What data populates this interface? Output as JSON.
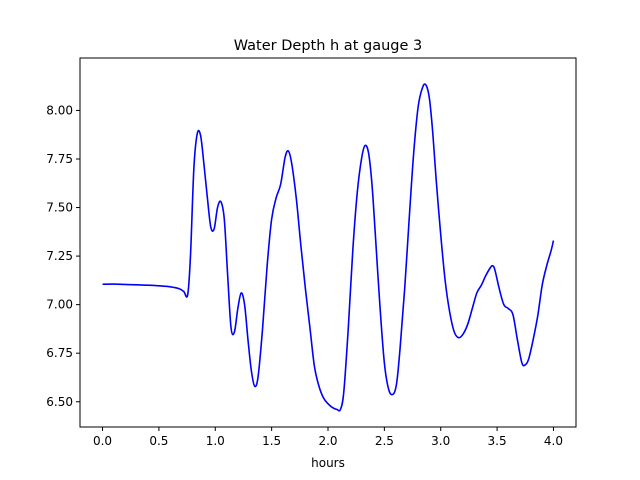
{
  "chart_data": {
    "type": "line",
    "title": "Water Depth h at gauge 3",
    "xlabel": "hours",
    "ylabel": "",
    "xlim": [
      -0.2,
      4.2
    ],
    "ylim": [
      6.37,
      8.27
    ],
    "xticks": [
      0.0,
      0.5,
      1.0,
      1.5,
      2.0,
      2.5,
      3.0,
      3.5,
      4.0
    ],
    "xtick_labels": [
      "0.0",
      "0.5",
      "1.0",
      "1.5",
      "2.0",
      "2.5",
      "3.0",
      "3.5",
      "4.0"
    ],
    "yticks": [
      6.5,
      6.75,
      7.0,
      7.25,
      7.5,
      7.75,
      8.0
    ],
    "ytick_labels": [
      "6.50",
      "6.75",
      "7.00",
      "7.25",
      "7.50",
      "7.75",
      "8.00"
    ],
    "grid": false,
    "legend": "none",
    "series": [
      {
        "color": "#0000ff",
        "x": [
          0.0,
          0.1,
          0.2,
          0.3,
          0.4,
          0.5,
          0.6,
          0.68,
          0.72,
          0.755,
          0.78,
          0.81,
          0.84,
          0.87,
          0.9,
          0.93,
          0.96,
          0.99,
          1.02,
          1.05,
          1.08,
          1.11,
          1.14,
          1.17,
          1.2,
          1.23,
          1.26,
          1.29,
          1.32,
          1.35,
          1.38,
          1.42,
          1.46,
          1.5,
          1.54,
          1.58,
          1.62,
          1.65,
          1.68,
          1.72,
          1.76,
          1.8,
          1.84,
          1.88,
          1.92,
          1.96,
          2.0,
          2.04,
          2.08,
          2.11,
          2.14,
          2.18,
          2.22,
          2.26,
          2.3,
          2.33,
          2.36,
          2.39,
          2.42,
          2.46,
          2.5,
          2.54,
          2.58,
          2.61,
          2.64,
          2.68,
          2.72,
          2.76,
          2.8,
          2.84,
          2.87,
          2.9,
          2.93,
          2.96,
          3.0,
          3.04,
          3.08,
          3.12,
          3.16,
          3.2,
          3.24,
          3.28,
          3.32,
          3.36,
          3.4,
          3.44,
          3.46,
          3.48,
          3.52,
          3.56,
          3.6,
          3.64,
          3.68,
          3.72,
          3.75,
          3.78,
          3.82,
          3.86,
          3.9,
          3.94,
          3.98,
          4.0
        ],
        "y": [
          7.105,
          7.106,
          7.104,
          7.102,
          7.1,
          7.097,
          7.092,
          7.082,
          7.068,
          7.05,
          7.25,
          7.7,
          7.88,
          7.87,
          7.72,
          7.55,
          7.4,
          7.39,
          7.5,
          7.53,
          7.44,
          7.15,
          6.88,
          6.86,
          6.98,
          7.06,
          7.0,
          6.82,
          6.66,
          6.58,
          6.63,
          6.88,
          7.2,
          7.44,
          7.55,
          7.62,
          7.76,
          7.79,
          7.72,
          7.54,
          7.3,
          7.08,
          6.88,
          6.68,
          6.58,
          6.52,
          6.49,
          6.47,
          6.46,
          6.46,
          6.55,
          6.88,
          7.28,
          7.58,
          7.76,
          7.82,
          7.78,
          7.62,
          7.36,
          7.0,
          6.7,
          6.56,
          6.54,
          6.6,
          6.78,
          7.08,
          7.44,
          7.78,
          8.02,
          8.12,
          8.13,
          8.06,
          7.88,
          7.64,
          7.36,
          7.12,
          6.96,
          6.86,
          6.83,
          6.85,
          6.9,
          6.98,
          7.06,
          7.1,
          7.15,
          7.19,
          7.2,
          7.18,
          7.08,
          7.0,
          6.98,
          6.95,
          6.82,
          6.7,
          6.69,
          6.72,
          6.82,
          6.94,
          7.1,
          7.2,
          7.28,
          7.33
        ]
      }
    ]
  }
}
